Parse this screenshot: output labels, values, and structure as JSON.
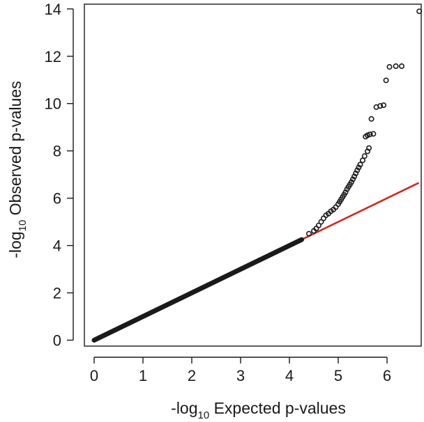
{
  "chart_data": {
    "type": "scatter",
    "title": "",
    "xlabel": {
      "prefix": "-log",
      "sub": "10",
      "suffix": " Expected p-values"
    },
    "ylabel": {
      "prefix": "-log",
      "sub": "10",
      "suffix": " Observed p-values"
    },
    "xlim": [
      -0.2,
      6.7
    ],
    "ylim": [
      -0.25,
      14.2
    ],
    "xticks": [
      0,
      1,
      2,
      3,
      4,
      5,
      6
    ],
    "yticks": [
      0,
      2,
      4,
      6,
      8,
      10,
      12,
      14
    ],
    "grid": false,
    "colors": {
      "points": "#1a1a1a",
      "reference_line": "#d7261e",
      "frame": "#1a1a1a"
    },
    "reference_line": {
      "x": [
        0,
        6.65
      ],
      "y": [
        0,
        6.65
      ]
    },
    "series": [
      {
        "points": [
          [
            4.4,
            4.5
          ],
          [
            4.5,
            4.62
          ],
          [
            4.55,
            4.72
          ],
          [
            4.6,
            4.85
          ],
          [
            4.65,
            5.0
          ],
          [
            4.7,
            5.15
          ],
          [
            4.75,
            5.28
          ],
          [
            4.8,
            5.35
          ],
          [
            4.85,
            5.45
          ],
          [
            4.9,
            5.52
          ],
          [
            4.95,
            5.62
          ],
          [
            5.0,
            5.75
          ],
          [
            5.03,
            5.85
          ],
          [
            5.06,
            5.95
          ],
          [
            5.09,
            6.05
          ],
          [
            5.12,
            6.15
          ],
          [
            5.15,
            6.25
          ],
          [
            5.18,
            6.38
          ],
          [
            5.21,
            6.48
          ],
          [
            5.24,
            6.58
          ],
          [
            5.27,
            6.68
          ],
          [
            5.3,
            6.8
          ],
          [
            5.33,
            6.92
          ],
          [
            5.36,
            7.05
          ],
          [
            5.39,
            7.18
          ],
          [
            5.42,
            7.3
          ],
          [
            5.45,
            7.42
          ],
          [
            5.5,
            7.6
          ],
          [
            5.54,
            7.78
          ],
          [
            5.6,
            7.98
          ],
          [
            5.63,
            8.12
          ],
          [
            5.56,
            8.6
          ],
          [
            5.6,
            8.66
          ],
          [
            5.65,
            8.7
          ],
          [
            5.72,
            8.72
          ],
          [
            5.68,
            9.35
          ],
          [
            5.78,
            9.85
          ],
          [
            5.86,
            9.9
          ],
          [
            5.93,
            9.93
          ],
          [
            5.98,
            10.98
          ],
          [
            6.05,
            11.55
          ],
          [
            6.18,
            11.58
          ],
          [
            6.3,
            11.58
          ],
          [
            6.66,
            13.9
          ]
        ]
      }
    ]
  }
}
